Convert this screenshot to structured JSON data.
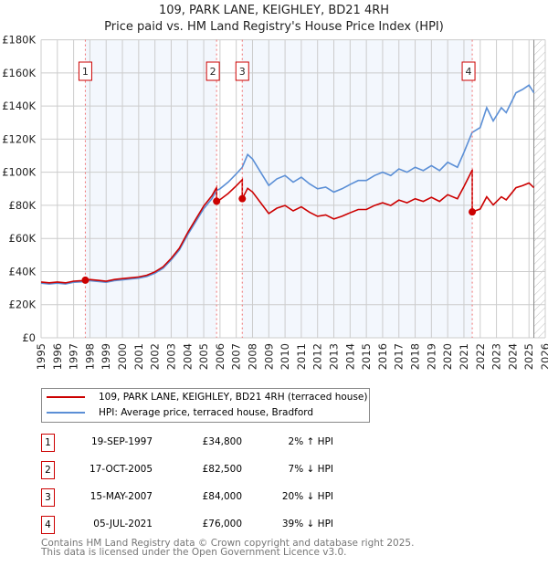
{
  "header": {
    "title": "109, PARK LANE, KEIGHLEY, BD21 4RH",
    "subtitle": "Price paid vs. HM Land Registry's House Price Index (HPI)"
  },
  "chart_data": {
    "type": "line",
    "title": "109, PARK LANE, KEIGHLEY, BD21 4RH",
    "xlabel": "",
    "ylabel": "",
    "xlim": [
      1995,
      2026
    ],
    "ylim": [
      0,
      180000
    ],
    "yticks": [
      0,
      20000,
      40000,
      60000,
      80000,
      100000,
      120000,
      140000,
      160000,
      180000
    ],
    "ytick_labels": [
      "£0",
      "£20K",
      "£40K",
      "£60K",
      "£80K",
      "£100K",
      "£120K",
      "£140K",
      "£160K",
      "£180K"
    ],
    "xticks": [
      1995,
      1996,
      1997,
      1998,
      1999,
      2000,
      2001,
      2002,
      2003,
      2004,
      2005,
      2006,
      2007,
      2008,
      2009,
      2010,
      2011,
      2012,
      2013,
      2014,
      2015,
      2016,
      2017,
      2018,
      2019,
      2020,
      2021,
      2022,
      2023,
      2024,
      2025,
      2026
    ],
    "grid": true,
    "series": [
      {
        "name": "109, PARK LANE, KEIGHLEY, BD21 4RH (terraced house)",
        "color": "#cc0000"
      },
      {
        "name": "HPI: Average price, terraced house, Bradford",
        "color": "#5b8fd6",
        "x": [
          1995,
          1995.5,
          1996,
          1996.5,
          1997,
          1997.5,
          1997.72,
          1998,
          1998.5,
          1999,
          1999.5,
          2000,
          2000.5,
          2001,
          2001.5,
          2002,
          2002.5,
          2003,
          2003.5,
          2004,
          2004.5,
          2005,
          2005.5,
          2005.79,
          2006,
          2006.5,
          2007,
          2007.37,
          2007.7,
          2008,
          2008.5,
          2009,
          2009.5,
          2010,
          2010.5,
          2011,
          2011.5,
          2012,
          2012.5,
          2013,
          2013.5,
          2014,
          2014.5,
          2015,
          2015.5,
          2016,
          2016.5,
          2017,
          2017.5,
          2018,
          2018.5,
          2019,
          2019.5,
          2020,
          2020.6,
          2021,
          2021.5,
          2022,
          2022.4,
          2022.8,
          2023.3,
          2023.6,
          2024.2,
          2024.6,
          2025.0,
          2025.3
        ],
        "y": [
          33000,
          32500,
          33000,
          32500,
          33500,
          33800,
          34100,
          34500,
          34000,
          33500,
          34500,
          35000,
          35500,
          36000,
          37000,
          39000,
          42000,
          47000,
          53000,
          62000,
          70000,
          78000,
          84000,
          89000,
          90000,
          94000,
          99000,
          103000,
          110700,
          108000,
          100000,
          92000,
          96000,
          98000,
          94000,
          97000,
          93000,
          90000,
          91000,
          88000,
          90000,
          92600,
          95000,
          95000,
          98000,
          100000,
          98000,
          102000,
          100000,
          103000,
          101000,
          104000,
          101000,
          106000,
          103000,
          112000,
          124000,
          127000,
          139000,
          131000,
          139000,
          136000,
          148000,
          150000,
          152600,
          148000
        ]
      }
    ],
    "sales": [
      {
        "label": "1",
        "x": 1997.72,
        "date": "19-SEP-1997",
        "price": 34800,
        "price_label": "£34,800",
        "hpi": "2% ↑ HPI"
      },
      {
        "label": "2",
        "x": 2005.79,
        "date": "17-OCT-2005",
        "price": 82500,
        "price_label": "£82,500",
        "hpi": "7% ↓ HPI"
      },
      {
        "label": "3",
        "x": 2007.37,
        "date": "15-MAY-2007",
        "price": 84000,
        "price_label": "£84,000",
        "hpi": "20% ↓ HPI"
      },
      {
        "label": "4",
        "x": 2021.51,
        "date": "05-JUL-2021",
        "price": 76000,
        "price_label": "£76,000",
        "hpi": "39% ↓ HPI"
      }
    ],
    "forecast_from": 2025.3
  },
  "legend": {
    "red": "109, PARK LANE, KEIGHLEY, BD21 4RH (terraced house)",
    "blue": "HPI: Average price, terraced house, Bradford"
  },
  "footer": {
    "line1": "Contains HM Land Registry data © Crown copyright and database right 2025.",
    "line2": "This data is licensed under the Open Government Licence v3.0."
  }
}
